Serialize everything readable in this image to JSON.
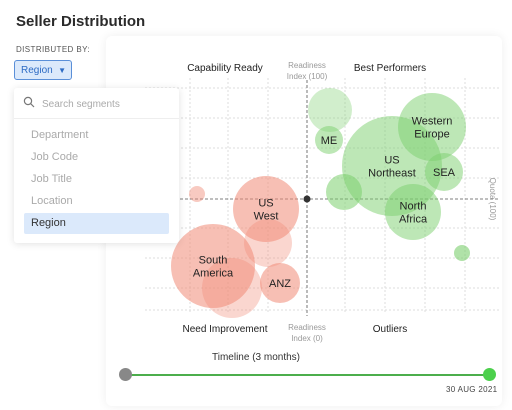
{
  "page": {
    "title": "Seller Distribution"
  },
  "filter": {
    "label": "DISTRIBUTED BY:",
    "selected": "Region",
    "search_placeholder": "Search segments",
    "options": [
      "Department",
      "Job Code",
      "Job Title",
      "Location",
      "Region"
    ],
    "selected_index": 4
  },
  "chart_data": {
    "type": "scatter",
    "quadrants": {
      "top_left": "Capability Ready",
      "top_right": "Best Performers",
      "bottom_left": "Need Improvement",
      "bottom_right": "Outliers"
    },
    "x_axis": {
      "top_label": [
        "Readiness",
        "Index (100)"
      ],
      "bottom_label": [
        "Readiness",
        "Index (0)"
      ]
    },
    "y_axis": {
      "label": "Quota (100)"
    },
    "grid": true,
    "colors": {
      "green": "#7ccf6e",
      "red": "#f08a76"
    },
    "bubbles": [
      {
        "label": "Western Europe",
        "lines": [
          "Western",
          "Europe"
        ],
        "color": "green"
      },
      {
        "label": "US Northeast",
        "lines": [
          "US",
          "Northeast"
        ],
        "color": "green"
      },
      {
        "label": "ME",
        "lines": [
          "ME"
        ],
        "color": "green"
      },
      {
        "label": "SEA",
        "lines": [
          "SEA"
        ],
        "color": "green"
      },
      {
        "label": "North Africa",
        "lines": [
          "North",
          "Africa"
        ],
        "color": "green"
      },
      {
        "label": "US West",
        "lines": [
          "US",
          "West"
        ],
        "color": "red"
      },
      {
        "label": "South America",
        "lines": [
          "South",
          "America"
        ],
        "color": "red"
      },
      {
        "label": "ANZ",
        "lines": [
          "ANZ"
        ],
        "color": "red"
      }
    ]
  },
  "timeline": {
    "label": "Timeline (3 months)",
    "end_date": "30 AUG 2021"
  }
}
